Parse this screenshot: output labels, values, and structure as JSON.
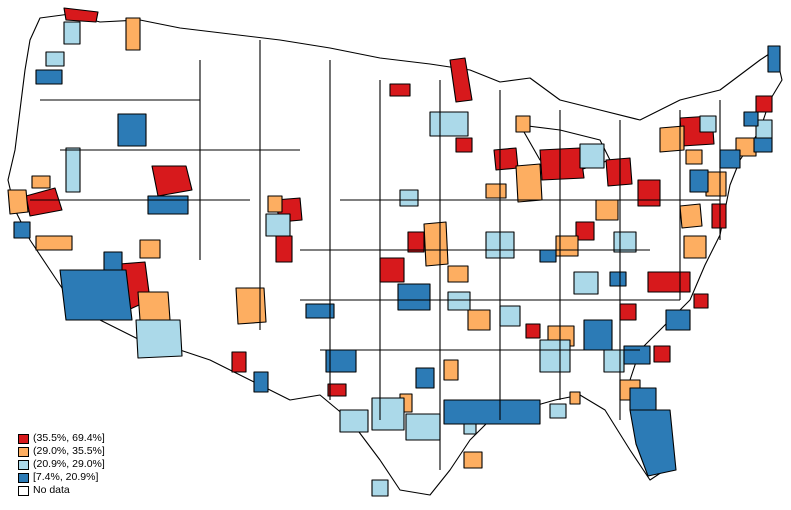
{
  "map": {
    "region": "United States",
    "colors": {
      "bin1": "#d7191c",
      "bin2": "#fdae61",
      "bin3": "#abd9e9",
      "bin4": "#2c7bb6",
      "no_data": "#ffffff",
      "border": "#000000"
    }
  },
  "legend": {
    "items": [
      {
        "label": "(35.5%, 69.4%]",
        "color": "#d7191c"
      },
      {
        "label": "(29.0%, 35.5%]",
        "color": "#fdae61"
      },
      {
        "label": "(20.9%, 29.0%]",
        "color": "#abd9e9"
      },
      {
        "label": "[7.4%, 20.9%]",
        "color": "#2c7bb6"
      },
      {
        "label": "No data",
        "color": "#ffffff"
      }
    ]
  }
}
